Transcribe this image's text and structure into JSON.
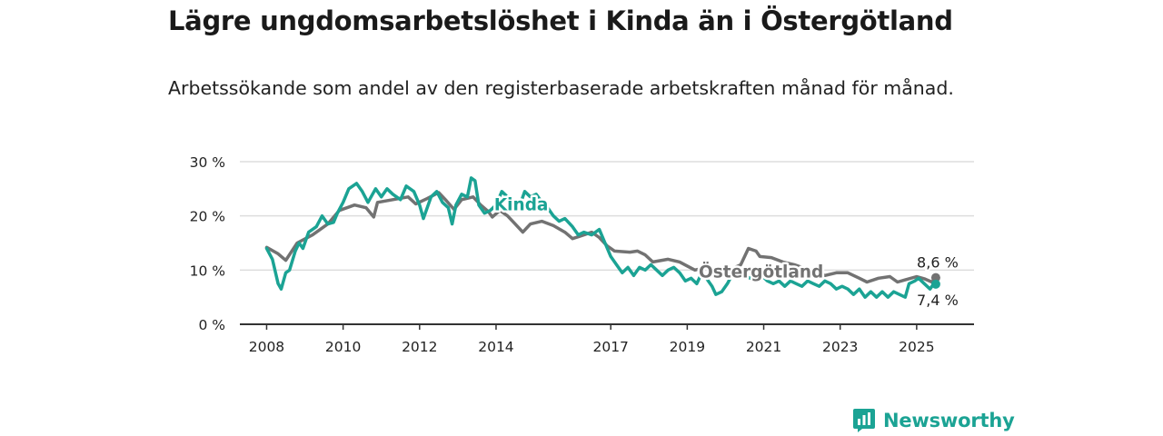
{
  "header": {
    "title": "Lägre ungdomsarbetslöshet i Kinda än i Östergötland",
    "subtitle": "Arbetssökande som andel av den registerbaserade arbetskraften månad för månad."
  },
  "brand": {
    "name": "Newsworthy",
    "icon": "bar-chart-icon",
    "color": "#1ba394"
  },
  "chart_data": {
    "type": "line",
    "title": "",
    "xlabel": "",
    "ylabel": "",
    "xlim": [
      2007.3,
      2026.5
    ],
    "ylim": [
      0,
      30
    ],
    "x_ticks": [
      {
        "value": 2008,
        "label": "2008"
      },
      {
        "value": 2010,
        "label": "2010"
      },
      {
        "value": 2012,
        "label": "2012"
      },
      {
        "value": 2014,
        "label": "2014"
      },
      {
        "value": 2017,
        "label": "2017"
      },
      {
        "value": 2019,
        "label": "2019"
      },
      {
        "value": 2021,
        "label": "2021"
      },
      {
        "value": 2023,
        "label": "2023"
      },
      {
        "value": 2025,
        "label": "2025"
      }
    ],
    "y_ticks": [
      {
        "value": 0,
        "label": "0 %"
      },
      {
        "value": 10,
        "label": "10 %"
      },
      {
        "value": 20,
        "label": "20 %"
      },
      {
        "value": 30,
        "label": "30 %"
      }
    ],
    "grid": true,
    "series": [
      {
        "name": "Östergötland",
        "color": "#727272",
        "end_label": "8,6 %",
        "points": [
          [
            2008.0,
            14.2
          ],
          [
            2008.3,
            13.0
          ],
          [
            2008.5,
            11.8
          ],
          [
            2008.8,
            15.0
          ],
          [
            2009.2,
            16.5
          ],
          [
            2009.6,
            18.5
          ],
          [
            2009.9,
            21.0
          ],
          [
            2010.3,
            22.0
          ],
          [
            2010.6,
            21.5
          ],
          [
            2010.8,
            19.8
          ],
          [
            2010.9,
            22.5
          ],
          [
            2011.3,
            23.0
          ],
          [
            2011.7,
            23.5
          ],
          [
            2011.9,
            22.2
          ],
          [
            2012.2,
            23.2
          ],
          [
            2012.5,
            24.3
          ],
          [
            2012.7,
            22.8
          ],
          [
            2012.9,
            21.2
          ],
          [
            2013.1,
            23.0
          ],
          [
            2013.4,
            23.5
          ],
          [
            2013.6,
            22.0
          ],
          [
            2013.8,
            20.8
          ],
          [
            2013.9,
            19.8
          ],
          [
            2014.1,
            21.0
          ],
          [
            2014.3,
            20.0
          ],
          [
            2014.5,
            18.5
          ],
          [
            2014.7,
            17.0
          ],
          [
            2014.9,
            18.5
          ],
          [
            2015.2,
            19.0
          ],
          [
            2015.5,
            18.2
          ],
          [
            2015.8,
            17.0
          ],
          [
            2016.0,
            15.8
          ],
          [
            2016.3,
            16.5
          ],
          [
            2016.5,
            17.0
          ],
          [
            2016.7,
            16.0
          ],
          [
            2016.9,
            14.5
          ],
          [
            2017.1,
            13.5
          ],
          [
            2017.5,
            13.3
          ],
          [
            2017.7,
            13.5
          ],
          [
            2017.9,
            12.8
          ],
          [
            2018.1,
            11.5
          ],
          [
            2018.5,
            12.0
          ],
          [
            2018.8,
            11.5
          ],
          [
            2019.2,
            10.0
          ],
          [
            2019.5,
            10.5
          ],
          [
            2019.8,
            10.0
          ],
          [
            2020.1,
            10.0
          ],
          [
            2020.4,
            11.0
          ],
          [
            2020.6,
            14.0
          ],
          [
            2020.8,
            13.5
          ],
          [
            2020.9,
            12.5
          ],
          [
            2021.2,
            12.3
          ],
          [
            2021.5,
            11.5
          ],
          [
            2021.8,
            11.0
          ],
          [
            2022.0,
            10.5
          ],
          [
            2022.3,
            9.8
          ],
          [
            2022.6,
            9.0
          ],
          [
            2022.9,
            9.5
          ],
          [
            2023.2,
            9.5
          ],
          [
            2023.5,
            8.5
          ],
          [
            2023.7,
            7.8
          ],
          [
            2024.0,
            8.5
          ],
          [
            2024.3,
            8.8
          ],
          [
            2024.5,
            7.8
          ],
          [
            2024.7,
            8.2
          ],
          [
            2025.0,
            8.8
          ],
          [
            2025.2,
            8.4
          ],
          [
            2025.4,
            7.8
          ],
          [
            2025.5,
            8.6
          ]
        ]
      },
      {
        "name": "Kinda",
        "color": "#1ba394",
        "end_label": "7,4 %",
        "points": [
          [
            2008.0,
            14.0
          ],
          [
            2008.15,
            12.0
          ],
          [
            2008.3,
            7.5
          ],
          [
            2008.38,
            6.5
          ],
          [
            2008.5,
            9.5
          ],
          [
            2008.6,
            10.0
          ],
          [
            2008.75,
            13.5
          ],
          [
            2008.85,
            15.0
          ],
          [
            2008.95,
            14.0
          ],
          [
            2009.1,
            17.0
          ],
          [
            2009.3,
            18.0
          ],
          [
            2009.45,
            20.0
          ],
          [
            2009.6,
            18.5
          ],
          [
            2009.75,
            18.8
          ],
          [
            2009.85,
            20.5
          ],
          [
            2010.0,
            22.5
          ],
          [
            2010.15,
            25.0
          ],
          [
            2010.35,
            26.0
          ],
          [
            2010.5,
            24.5
          ],
          [
            2010.65,
            22.5
          ],
          [
            2010.85,
            25.0
          ],
          [
            2011.0,
            23.5
          ],
          [
            2011.15,
            25.0
          ],
          [
            2011.3,
            24.0
          ],
          [
            2011.5,
            23.0
          ],
          [
            2011.65,
            25.5
          ],
          [
            2011.85,
            24.5
          ],
          [
            2012.0,
            22.0
          ],
          [
            2012.1,
            19.5
          ],
          [
            2012.3,
            23.5
          ],
          [
            2012.45,
            24.5
          ],
          [
            2012.6,
            22.5
          ],
          [
            2012.75,
            21.5
          ],
          [
            2012.85,
            18.5
          ],
          [
            2012.95,
            22.0
          ],
          [
            2013.1,
            24.0
          ],
          [
            2013.25,
            23.5
          ],
          [
            2013.35,
            27.0
          ],
          [
            2013.45,
            26.5
          ],
          [
            2013.55,
            22.0
          ],
          [
            2013.7,
            20.5
          ],
          [
            2013.85,
            21.0
          ],
          [
            2014.0,
            22.0
          ],
          [
            2014.15,
            24.5
          ],
          [
            2014.3,
            23.5
          ],
          [
            2014.45,
            22.5
          ],
          [
            2014.6,
            21.5
          ],
          [
            2014.75,
            24.5
          ],
          [
            2014.9,
            23.5
          ],
          [
            2015.05,
            24.0
          ],
          [
            2015.2,
            22.5
          ],
          [
            2015.35,
            21.5
          ],
          [
            2015.5,
            20.0
          ],
          [
            2015.65,
            19.0
          ],
          [
            2015.8,
            19.5
          ],
          [
            2016.0,
            18.0
          ],
          [
            2016.15,
            16.5
          ],
          [
            2016.3,
            17.0
          ],
          [
            2016.5,
            16.5
          ],
          [
            2016.7,
            17.5
          ],
          [
            2016.85,
            15.0
          ],
          [
            2017.0,
            12.5
          ],
          [
            2017.15,
            11.0
          ],
          [
            2017.3,
            9.5
          ],
          [
            2017.45,
            10.5
          ],
          [
            2017.6,
            9.0
          ],
          [
            2017.75,
            10.5
          ],
          [
            2017.9,
            10.0
          ],
          [
            2018.05,
            11.0
          ],
          [
            2018.2,
            10.0
          ],
          [
            2018.35,
            9.0
          ],
          [
            2018.5,
            10.0
          ],
          [
            2018.65,
            10.5
          ],
          [
            2018.8,
            9.5
          ],
          [
            2018.95,
            8.0
          ],
          [
            2019.1,
            8.5
          ],
          [
            2019.25,
            7.5
          ],
          [
            2019.35,
            9.0
          ],
          [
            2019.5,
            8.5
          ],
          [
            2019.65,
            7.0
          ],
          [
            2019.75,
            5.5
          ],
          [
            2019.9,
            6.0
          ],
          [
            2020.05,
            7.5
          ],
          [
            2020.2,
            9.5
          ],
          [
            2020.35,
            8.5
          ],
          [
            2020.5,
            9.0
          ],
          [
            2020.65,
            8.5
          ],
          [
            2020.8,
            9.5
          ],
          [
            2020.95,
            9.0
          ],
          [
            2021.1,
            8.0
          ],
          [
            2021.25,
            7.5
          ],
          [
            2021.4,
            8.0
          ],
          [
            2021.55,
            7.0
          ],
          [
            2021.7,
            8.0
          ],
          [
            2021.85,
            7.5
          ],
          [
            2022.0,
            7.0
          ],
          [
            2022.15,
            8.0
          ],
          [
            2022.3,
            7.5
          ],
          [
            2022.45,
            7.0
          ],
          [
            2022.6,
            8.0
          ],
          [
            2022.75,
            7.5
          ],
          [
            2022.9,
            6.5
          ],
          [
            2023.05,
            7.0
          ],
          [
            2023.2,
            6.5
          ],
          [
            2023.35,
            5.5
          ],
          [
            2023.5,
            6.5
          ],
          [
            2023.65,
            5.0
          ],
          [
            2023.8,
            6.0
          ],
          [
            2023.95,
            5.0
          ],
          [
            2024.1,
            6.0
          ],
          [
            2024.25,
            5.0
          ],
          [
            2024.4,
            6.0
          ],
          [
            2024.55,
            5.5
          ],
          [
            2024.7,
            5.0
          ],
          [
            2024.8,
            7.5
          ],
          [
            2024.95,
            8.0
          ],
          [
            2025.05,
            8.5
          ],
          [
            2025.2,
            7.5
          ],
          [
            2025.35,
            6.5
          ],
          [
            2025.45,
            7.5
          ],
          [
            2025.5,
            7.4
          ]
        ]
      }
    ],
    "annotations": [
      {
        "text": "Kinda",
        "series": "Kinda",
        "x": 2013.95,
        "y": 22.2
      },
      {
        "text": "Östergötland",
        "series": "Östergötland",
        "x": 2019.3,
        "y": 9.8
      }
    ]
  }
}
